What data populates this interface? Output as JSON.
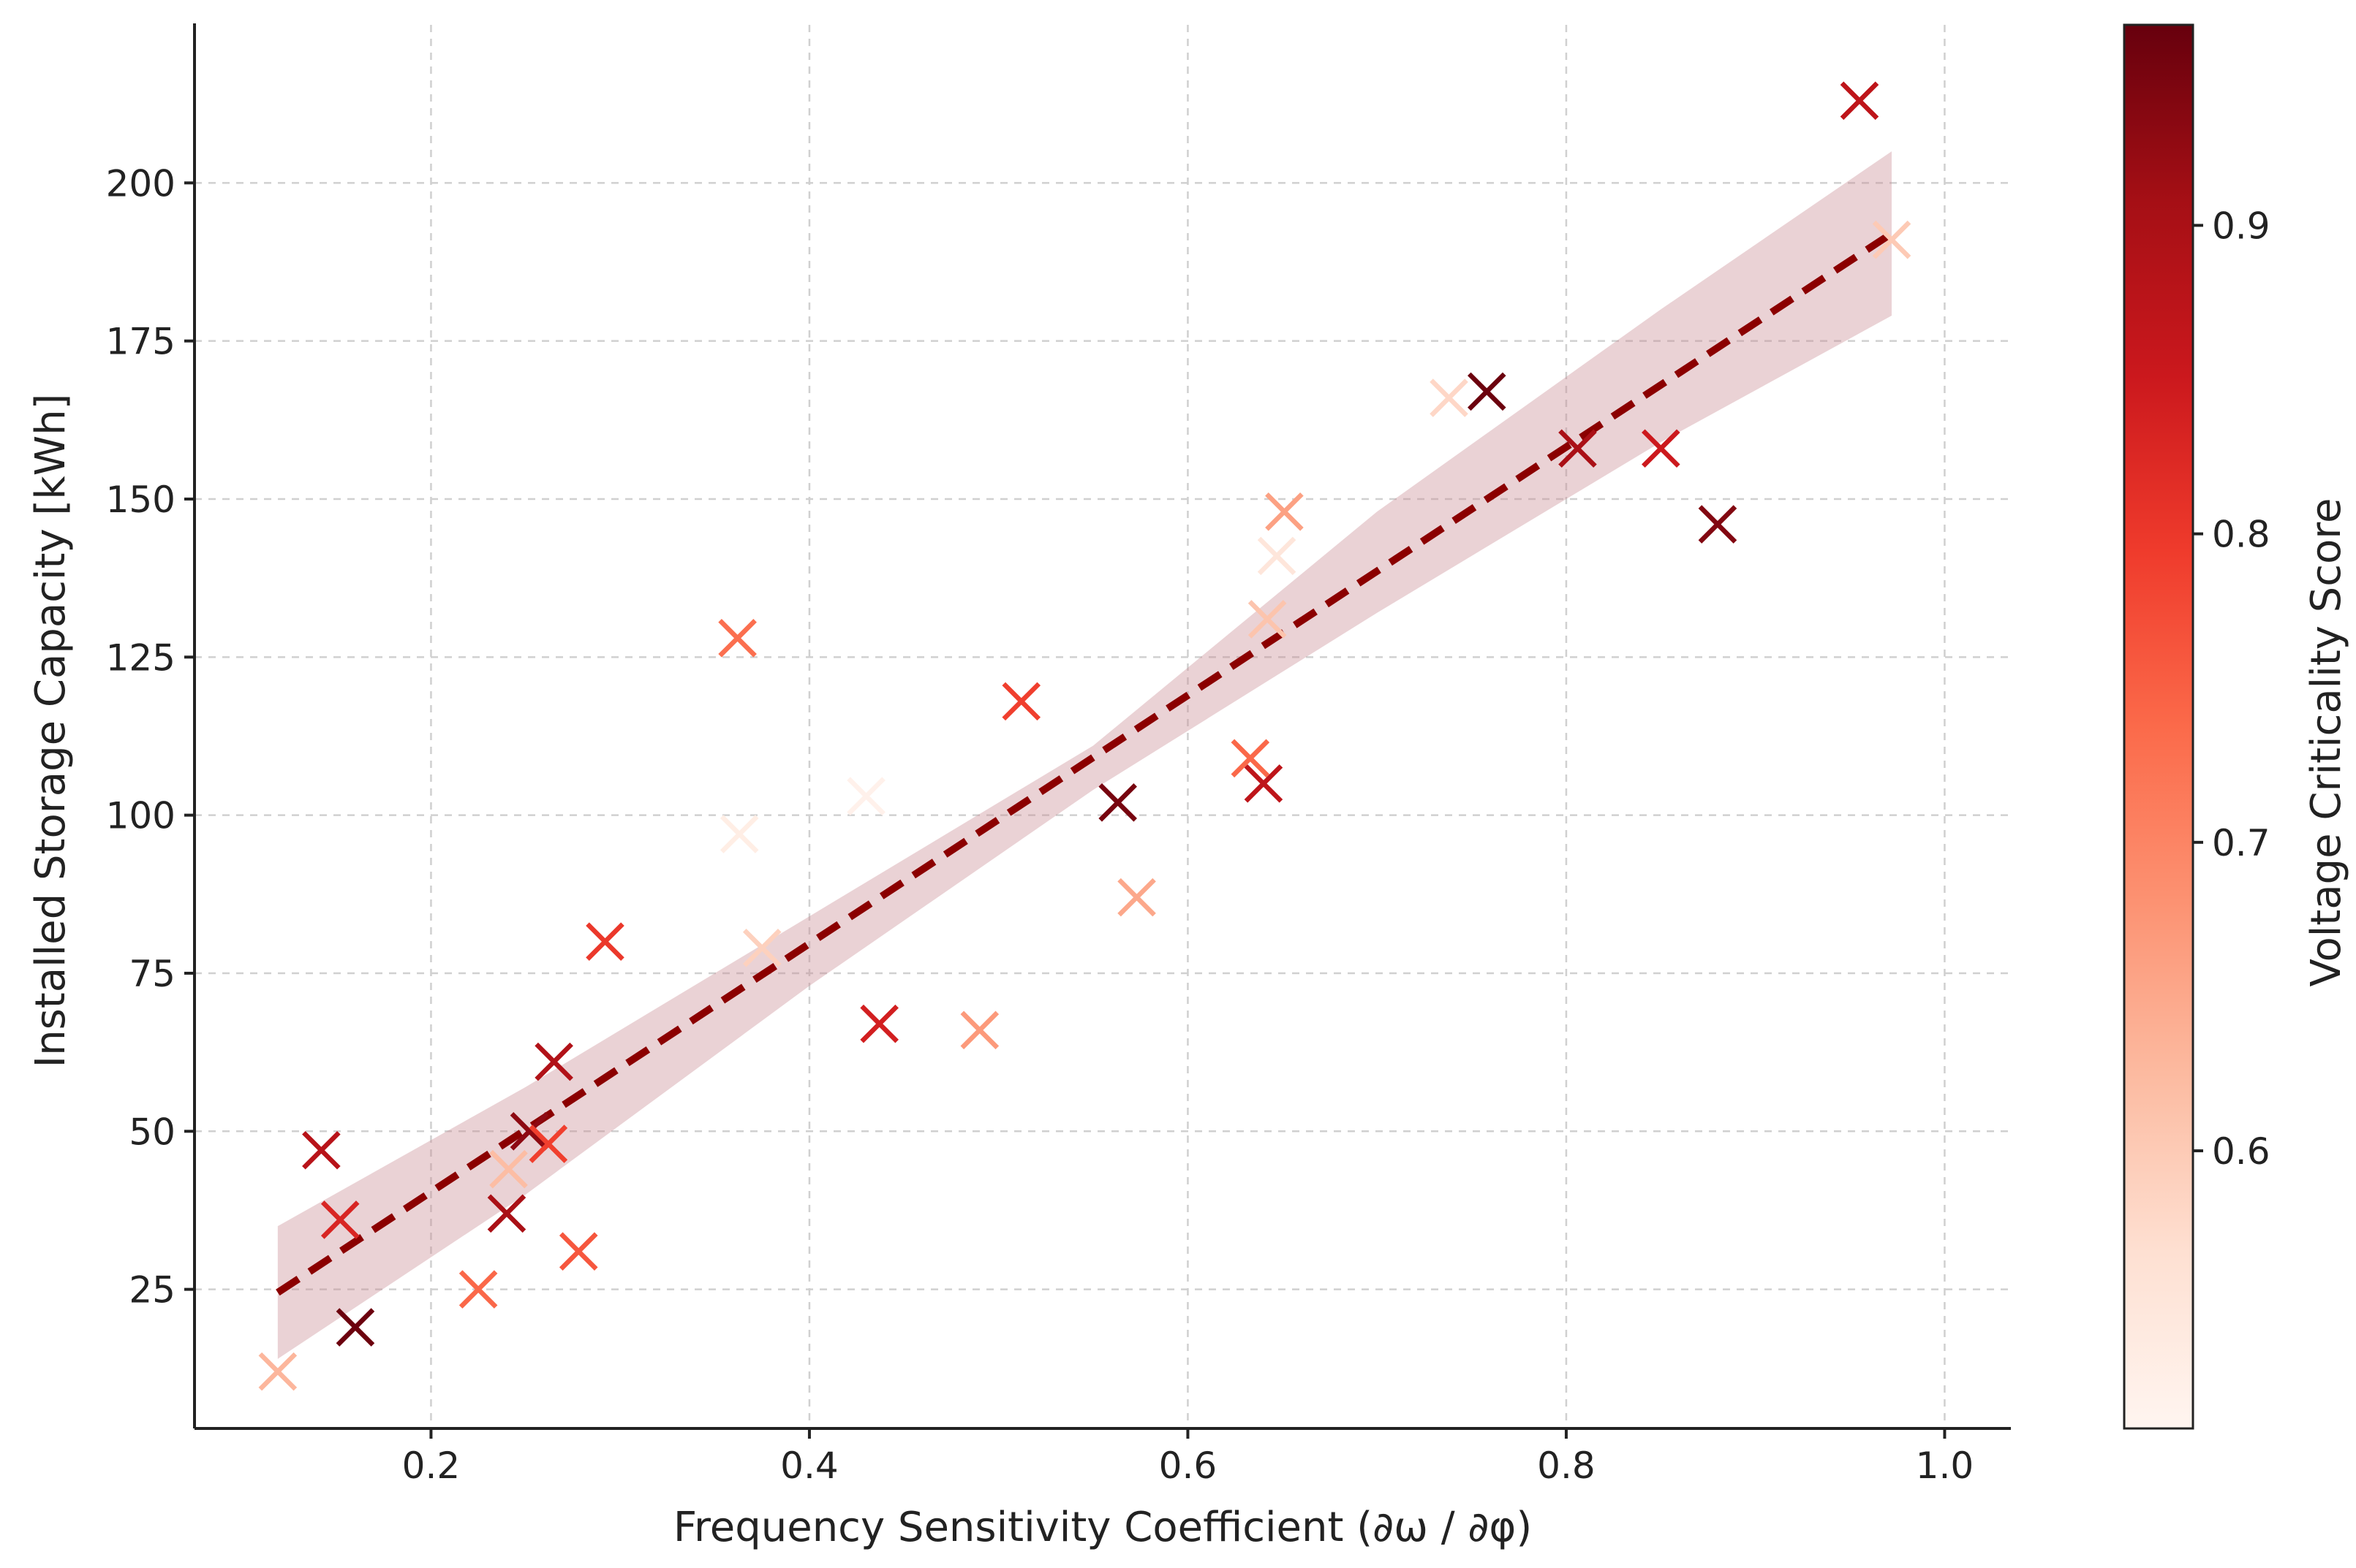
{
  "chart_data": {
    "type": "scatter",
    "title": "",
    "xlabel": "Frequency Sensitivity Coefficient (∂ω / ∂φ)",
    "ylabel": "Installed Storage Capacity [kWh]",
    "xlim": [
      0.075,
      1.035
    ],
    "ylim": [
      3,
      225
    ],
    "xticks": [
      0.2,
      0.4,
      0.6,
      0.8,
      1.0
    ],
    "xtick_labels": [
      "0.2",
      "0.4",
      "0.6",
      "0.8",
      "1.0"
    ],
    "yticks": [
      25,
      50,
      75,
      100,
      125,
      150,
      175,
      200
    ],
    "ytick_labels": [
      "25",
      "50",
      "75",
      "100",
      "125",
      "150",
      "175",
      "200"
    ],
    "grid": true,
    "marker": "x",
    "colormap": "Reds",
    "colorbar": {
      "label": "Voltage Criticality Score",
      "range": [
        0.51,
        0.965
      ],
      "ticks": [
        0.6,
        0.7,
        0.8,
        0.9
      ],
      "tick_labels": [
        "0.6",
        "0.7",
        "0.8",
        "0.9"
      ],
      "colors": [
        "#fff5f0",
        "#fee0d2",
        "#fcbba1",
        "#fc9272",
        "#fb6a4a",
        "#ef3b2c",
        "#cb181d",
        "#a50f15",
        "#67000d"
      ]
    },
    "points": [
      {
        "x": 0.119,
        "y": 12,
        "c": 0.63
      },
      {
        "x": 0.142,
        "y": 47,
        "c": 0.88
      },
      {
        "x": 0.152,
        "y": 36,
        "c": 0.83
      },
      {
        "x": 0.16,
        "y": 19,
        "c": 0.96
      },
      {
        "x": 0.225,
        "y": 25,
        "c": 0.74
      },
      {
        "x": 0.24,
        "y": 37,
        "c": 0.9
      },
      {
        "x": 0.241,
        "y": 44,
        "c": 0.62
      },
      {
        "x": 0.252,
        "y": 50,
        "c": 0.93
      },
      {
        "x": 0.262,
        "y": 48,
        "c": 0.79
      },
      {
        "x": 0.265,
        "y": 61,
        "c": 0.89
      },
      {
        "x": 0.278,
        "y": 31,
        "c": 0.76
      },
      {
        "x": 0.292,
        "y": 80,
        "c": 0.8
      },
      {
        "x": 0.362,
        "y": 128,
        "c": 0.73
      },
      {
        "x": 0.363,
        "y": 97,
        "c": 0.53
      },
      {
        "x": 0.375,
        "y": 79,
        "c": 0.59
      },
      {
        "x": 0.43,
        "y": 103,
        "c": 0.52
      },
      {
        "x": 0.437,
        "y": 67,
        "c": 0.84
      },
      {
        "x": 0.49,
        "y": 66,
        "c": 0.67
      },
      {
        "x": 0.512,
        "y": 118,
        "c": 0.79
      },
      {
        "x": 0.563,
        "y": 102,
        "c": 0.95
      },
      {
        "x": 0.573,
        "y": 87,
        "c": 0.65
      },
      {
        "x": 0.633,
        "y": 109,
        "c": 0.74
      },
      {
        "x": 0.64,
        "y": 105,
        "c": 0.87
      },
      {
        "x": 0.642,
        "y": 131,
        "c": 0.61
      },
      {
        "x": 0.647,
        "y": 141,
        "c": 0.55
      },
      {
        "x": 0.651,
        "y": 148,
        "c": 0.66
      },
      {
        "x": 0.738,
        "y": 166,
        "c": 0.58
      },
      {
        "x": 0.758,
        "y": 167,
        "c": 0.96
      },
      {
        "x": 0.806,
        "y": 158,
        "c": 0.9
      },
      {
        "x": 0.85,
        "y": 158,
        "c": 0.85
      },
      {
        "x": 0.88,
        "y": 146,
        "c": 0.94
      },
      {
        "x": 0.955,
        "y": 213,
        "c": 0.87
      },
      {
        "x": 0.972,
        "y": 191,
        "c": 0.6
      }
    ],
    "trend": {
      "style": "dashed",
      "color": "#8b0000",
      "x": [
        0.119,
        0.972
      ],
      "y": [
        24.5,
        192
      ]
    },
    "confidence_band": {
      "color": "#c98a91",
      "x": [
        0.119,
        0.25,
        0.4,
        0.55,
        0.7,
        0.85,
        0.972
      ],
      "lower": [
        14,
        40,
        73,
        104,
        132,
        159,
        179
      ],
      "upper": [
        35,
        57,
        84,
        111,
        148,
        180,
        205
      ]
    }
  }
}
